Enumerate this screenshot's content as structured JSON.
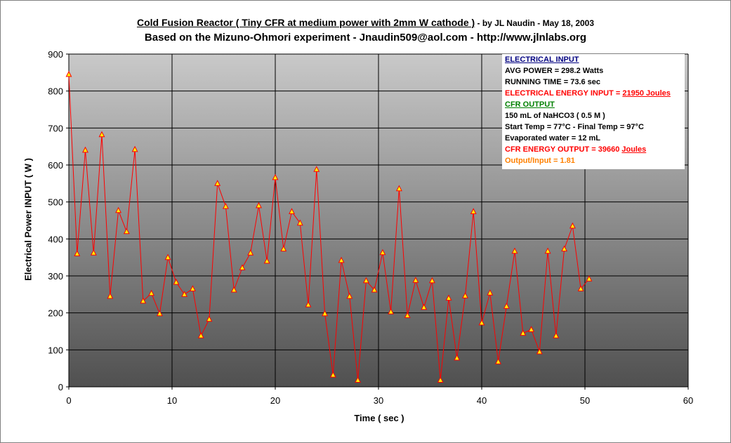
{
  "title": {
    "main": "Cold Fusion Reactor ( Tiny CFR at medium power with 2mm W cathode )",
    "byline": " - by JL Naudin - May 18, 2003",
    "subtitle": "Based on the Mizuno-Ohmori experiment - Jnaudin509@aol.com - http://www.jlnlabs.org"
  },
  "info_box": {
    "electrical_input_header": "ELECTRICAL INPUT",
    "avg_power": "AVG POWER = 298.2 Watts",
    "running_time": "RUNNING TIME = 73.6 sec",
    "energy_input_label": "ELECTRICAL  ENERGY INPUT = ",
    "energy_input_value": "21950 Joules",
    "cfr_output_header": "CFR OUTPUT",
    "solution": "150 mL of NaHCO3 ( 0.5 M )",
    "temps": "Start Temp = 77°C - Final Temp = 97°C",
    "evaporated": "Evaporated water = 12 mL",
    "energy_output_label": "CFR ENERGY OUTPUT = 39660 ",
    "energy_output_unit": "Joules",
    "ratio": "Output/Input = 1.81"
  },
  "chart_data": {
    "type": "line",
    "xlabel": "Time ( sec )",
    "ylabel": "Electrical Power INPUT ( W )",
    "xlim": [
      0,
      60
    ],
    "ylim": [
      0,
      900
    ],
    "x_ticks": [
      0,
      10,
      20,
      30,
      40,
      50,
      60
    ],
    "y_ticks": [
      0,
      100,
      200,
      300,
      400,
      500,
      600,
      700,
      800,
      900
    ],
    "grid": true,
    "line_color": "#ff0000",
    "marker_fill": "#ffff00",
    "marker_stroke": "#ff0000",
    "series": [
      {
        "x": [
          0.0,
          0.8,
          1.6,
          2.4,
          3.2,
          4.0,
          4.8,
          5.6,
          6.4,
          7.2,
          8.0,
          8.8,
          9.6,
          10.4,
          11.2,
          12.0,
          12.8,
          13.6,
          14.4,
          15.2,
          16.0,
          16.8,
          17.6,
          18.4,
          19.2,
          20.0,
          20.8,
          21.6,
          22.4,
          23.2,
          24.0,
          24.8,
          25.6,
          26.4,
          27.2,
          28.0,
          28.8,
          29.6,
          30.4,
          31.2,
          32.0,
          32.8,
          33.6,
          34.4,
          35.2,
          36.0,
          36.8,
          37.6,
          38.4,
          39.2,
          40.0,
          40.8,
          41.6,
          42.4,
          43.2,
          44.0,
          44.8,
          45.6,
          46.4,
          47.2,
          48.0,
          48.8,
          49.6,
          50.4
        ],
        "y": [
          845,
          360,
          640,
          362,
          682,
          245,
          477,
          420,
          642,
          232,
          253,
          198,
          350,
          283,
          250,
          265,
          138,
          183,
          550,
          488,
          262,
          322,
          362,
          490,
          340,
          566,
          373,
          474,
          443,
          222,
          588,
          198,
          32,
          342,
          245,
          18,
          287,
          262,
          363,
          203,
          536,
          193,
          288,
          215,
          287,
          18,
          240,
          78,
          246,
          474,
          173,
          254,
          68,
          218,
          367,
          145,
          155,
          95,
          367,
          138,
          373,
          435,
          265,
          292
        ]
      }
    ]
  }
}
